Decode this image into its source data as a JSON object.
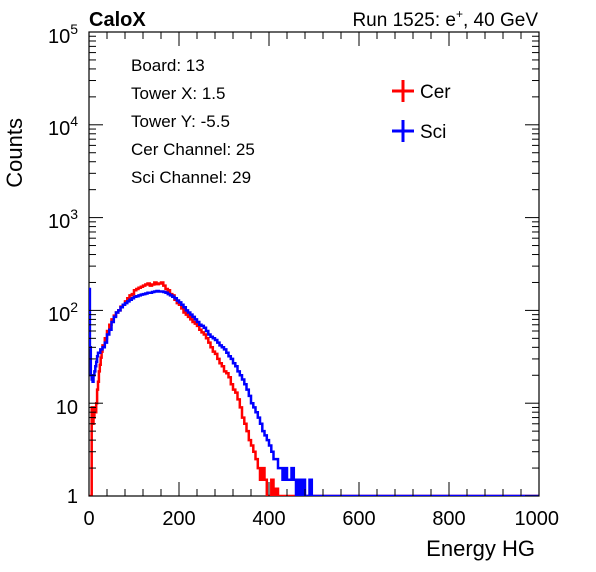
{
  "header": {
    "experiment": "CaloX",
    "run_info_prefix": "Run 1525: e",
    "run_info_sup": "+",
    "run_info_suffix": ", 40 GeV"
  },
  "info_box": [
    "Board: 13",
    "Tower X: 1.5",
    "Tower Y: -5.5",
    "Cer Channel: 25",
    "Sci Channel: 29"
  ],
  "colors": {
    "cer": "#ff0000",
    "sci": "#0000ff",
    "axis": "#000000"
  },
  "chart_data": {
    "type": "line",
    "xlabel": "Energy HG",
    "ylabel": "Counts",
    "xlim": [
      0,
      1000
    ],
    "ylim": [
      1,
      100000
    ],
    "yscale": "log",
    "x_ticks": [
      "0",
      "200",
      "400",
      "600",
      "800",
      "1000"
    ],
    "legend": "top-right",
    "grid": false,
    "series": [
      {
        "name": "Cer",
        "color": "#ff0000",
        "points": [
          [
            0,
            1
          ],
          [
            2,
            1
          ],
          [
            4,
            1
          ],
          [
            6,
            9
          ],
          [
            8,
            6
          ],
          [
            10,
            7
          ],
          [
            12,
            9
          ],
          [
            14,
            8
          ],
          [
            16,
            10
          ],
          [
            18,
            14
          ],
          [
            20,
            17
          ],
          [
            22,
            22
          ],
          [
            24,
            26
          ],
          [
            26,
            31
          ],
          [
            28,
            36
          ],
          [
            30,
            42
          ],
          [
            35,
            50
          ],
          [
            40,
            60
          ],
          [
            45,
            70
          ],
          [
            50,
            80
          ],
          [
            55,
            88
          ],
          [
            60,
            95
          ],
          [
            65,
            100
          ],
          [
            70,
            110
          ],
          [
            75,
            115
          ],
          [
            80,
            125
          ],
          [
            85,
            135
          ],
          [
            90,
            145
          ],
          [
            95,
            150
          ],
          [
            100,
            165
          ],
          [
            105,
            170
          ],
          [
            110,
            175
          ],
          [
            115,
            180
          ],
          [
            120,
            185
          ],
          [
            125,
            190
          ],
          [
            130,
            195
          ],
          [
            135,
            185
          ],
          [
            140,
            190
          ],
          [
            145,
            200
          ],
          [
            150,
            192
          ],
          [
            155,
            195
          ],
          [
            160,
            200
          ],
          [
            165,
            185
          ],
          [
            170,
            170
          ],
          [
            175,
            165
          ],
          [
            180,
            150
          ],
          [
            185,
            145
          ],
          [
            190,
            130
          ],
          [
            195,
            120
          ],
          [
            200,
            115
          ],
          [
            205,
            105
          ],
          [
            210,
            95
          ],
          [
            215,
            90
          ],
          [
            220,
            85
          ],
          [
            225,
            80
          ],
          [
            230,
            75
          ],
          [
            235,
            72
          ],
          [
            240,
            68
          ],
          [
            245,
            62
          ],
          [
            250,
            58
          ],
          [
            255,
            55
          ],
          [
            260,
            50
          ],
          [
            265,
            45
          ],
          [
            270,
            40
          ],
          [
            275,
            36
          ],
          [
            280,
            34
          ],
          [
            285,
            30
          ],
          [
            290,
            27
          ],
          [
            295,
            25
          ],
          [
            300,
            22
          ],
          [
            305,
            21
          ],
          [
            310,
            19
          ],
          [
            315,
            16
          ],
          [
            320,
            14
          ],
          [
            325,
            13
          ],
          [
            330,
            11
          ],
          [
            335,
            9
          ],
          [
            340,
            7
          ],
          [
            345,
            6
          ],
          [
            350,
            5
          ],
          [
            355,
            4
          ],
          [
            360,
            3.5
          ],
          [
            365,
            3
          ],
          [
            370,
            2.5
          ],
          [
            375,
            2
          ],
          [
            380,
            1.5
          ],
          [
            385,
            2
          ],
          [
            390,
            1.5
          ],
          [
            395,
            1
          ],
          [
            400,
            1
          ],
          [
            405,
            1.5
          ],
          [
            410,
            1
          ],
          [
            415,
            1.2
          ],
          [
            420,
            1
          ],
          [
            425,
            1
          ],
          [
            430,
            1
          ],
          [
            440,
            1
          ],
          [
            450,
            1
          ],
          [
            460,
            1
          ],
          [
            470,
            1
          ],
          [
            480,
            1
          ],
          [
            490,
            1
          ],
          [
            500,
            1
          ],
          [
            1000,
            1
          ]
        ]
      },
      {
        "name": "Sci",
        "color": "#0000ff",
        "points": [
          [
            0,
            170
          ],
          [
            2,
            40
          ],
          [
            4,
            20
          ],
          [
            6,
            18
          ],
          [
            8,
            17
          ],
          [
            10,
            20
          ],
          [
            12,
            22
          ],
          [
            14,
            25
          ],
          [
            16,
            28
          ],
          [
            18,
            32
          ],
          [
            20,
            35
          ],
          [
            25,
            38
          ],
          [
            30,
            40
          ],
          [
            35,
            45
          ],
          [
            40,
            55
          ],
          [
            45,
            62
          ],
          [
            50,
            75
          ],
          [
            55,
            85
          ],
          [
            60,
            95
          ],
          [
            65,
            100
          ],
          [
            70,
            108
          ],
          [
            75,
            115
          ],
          [
            80,
            120
          ],
          [
            85,
            125
          ],
          [
            90,
            130
          ],
          [
            95,
            135
          ],
          [
            100,
            140
          ],
          [
            105,
            142
          ],
          [
            110,
            145
          ],
          [
            115,
            148
          ],
          [
            120,
            150
          ],
          [
            125,
            152
          ],
          [
            130,
            155
          ],
          [
            135,
            155
          ],
          [
            140,
            158
          ],
          [
            145,
            160
          ],
          [
            150,
            162
          ],
          [
            155,
            160
          ],
          [
            160,
            160
          ],
          [
            165,
            158
          ],
          [
            170,
            155
          ],
          [
            175,
            150
          ],
          [
            180,
            145
          ],
          [
            185,
            140
          ],
          [
            190,
            135
          ],
          [
            195,
            128
          ],
          [
            200,
            122
          ],
          [
            205,
            115
          ],
          [
            210,
            108
          ],
          [
            215,
            100
          ],
          [
            220,
            95
          ],
          [
            225,
            90
          ],
          [
            230,
            85
          ],
          [
            235,
            80
          ],
          [
            240,
            75
          ],
          [
            245,
            70
          ],
          [
            250,
            68
          ],
          [
            255,
            65
          ],
          [
            260,
            60
          ],
          [
            265,
            55
          ],
          [
            270,
            52
          ],
          [
            275,
            50
          ],
          [
            280,
            48
          ],
          [
            285,
            45
          ],
          [
            290,
            42
          ],
          [
            295,
            40
          ],
          [
            300,
            38
          ],
          [
            305,
            35
          ],
          [
            310,
            32
          ],
          [
            315,
            30
          ],
          [
            320,
            27
          ],
          [
            325,
            25
          ],
          [
            330,
            22
          ],
          [
            335,
            20
          ],
          [
            340,
            18
          ],
          [
            345,
            16
          ],
          [
            350,
            14
          ],
          [
            355,
            12
          ],
          [
            360,
            10
          ],
          [
            365,
            9
          ],
          [
            370,
            8
          ],
          [
            375,
            7
          ],
          [
            380,
            6
          ],
          [
            385,
            5
          ],
          [
            390,
            4.5
          ],
          [
            395,
            4
          ],
          [
            400,
            3.5
          ],
          [
            405,
            3
          ],
          [
            410,
            2.5
          ],
          [
            415,
            2.5
          ],
          [
            420,
            2
          ],
          [
            425,
            2
          ],
          [
            430,
            1.5
          ],
          [
            435,
            2
          ],
          [
            440,
            1.5
          ],
          [
            445,
            1.5
          ],
          [
            450,
            2
          ],
          [
            455,
            1.5
          ],
          [
            460,
            1
          ],
          [
            465,
            1.5
          ],
          [
            470,
            1
          ],
          [
            475,
            1.5
          ],
          [
            480,
            1
          ],
          [
            485,
            1
          ],
          [
            490,
            1.5
          ],
          [
            495,
            1
          ],
          [
            500,
            1
          ],
          [
            505,
            1
          ],
          [
            510,
            1
          ],
          [
            515,
            1
          ],
          [
            520,
            1
          ],
          [
            525,
            1
          ],
          [
            530,
            1
          ],
          [
            535,
            1
          ],
          [
            540,
            1
          ],
          [
            545,
            1
          ],
          [
            550,
            1
          ],
          [
            560,
            1
          ],
          [
            570,
            1
          ],
          [
            580,
            1
          ],
          [
            590,
            1
          ],
          [
            600,
            1
          ],
          [
            610,
            1
          ],
          [
            620,
            1
          ],
          [
            625,
            1
          ],
          [
            630,
            1
          ],
          [
            635,
            1
          ],
          [
            640,
            1
          ],
          [
            650,
            1
          ],
          [
            700,
            1
          ],
          [
            1000,
            1
          ]
        ]
      }
    ]
  }
}
